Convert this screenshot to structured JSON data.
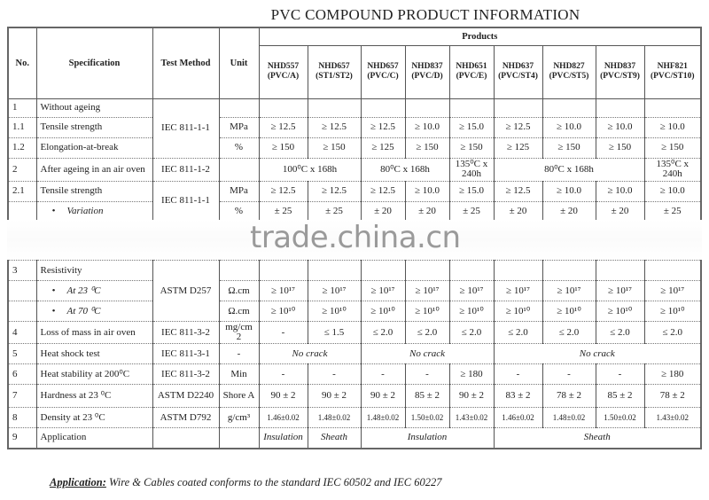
{
  "title": "PVC COMPOUND PRODUCT INFORMATION",
  "watermark": "trade.china.cn",
  "headers": {
    "no": "No.",
    "spec": "Specification",
    "method": "Test Method",
    "unit": "Unit",
    "products": "Products"
  },
  "products": [
    [
      "NHD557",
      "(PVC/A)"
    ],
    [
      "NHD657",
      "(ST1/ST2)"
    ],
    [
      "NHD657",
      "(PVC/C)"
    ],
    [
      "NHD837",
      "(PVC/D)"
    ],
    [
      "NHD651",
      "(PVC/E)"
    ],
    [
      "NHD637",
      "(PVC/ST4)"
    ],
    [
      "NHD827",
      "(PVC/ST5)"
    ],
    [
      "NHD837",
      "(PVC/ST9)"
    ],
    [
      "NHF821",
      "(PVC/ST10)"
    ]
  ],
  "rows_top": [
    {
      "no": "1",
      "spec": "Without ageing",
      "method": {
        "text": "IEC 811-1-1",
        "rowspan": 3
      },
      "unit": "",
      "values": [
        [
          "",
          1
        ],
        [
          "",
          1
        ],
        [
          "",
          1
        ],
        [
          "",
          1
        ],
        [
          "",
          1
        ],
        [
          "",
          1
        ],
        [
          "",
          1
        ],
        [
          "",
          1
        ],
        [
          "",
          1
        ]
      ]
    },
    {
      "no": "1.1",
      "spec": "Tensile strength",
      "unit": "MPa",
      "values": [
        [
          "≥ 12.5",
          1
        ],
        [
          "≥ 12.5",
          1
        ],
        [
          "≥ 12.5",
          1
        ],
        [
          "≥ 10.0",
          1
        ],
        [
          "≥ 15.0",
          1
        ],
        [
          "≥ 12.5",
          1
        ],
        [
          "≥ 10.0",
          1
        ],
        [
          "≥ 10.0",
          1
        ],
        [
          "≥ 10.0",
          1
        ]
      ]
    },
    {
      "no": "1.2",
      "spec": "Elongation-at-break",
      "unit": "%",
      "values": [
        [
          "≥ 150",
          1
        ],
        [
          "≥ 150",
          1
        ],
        [
          "≥ 125",
          1
        ],
        [
          "≥ 150",
          1
        ],
        [
          "≥ 150",
          1
        ],
        [
          "≥ 125",
          1
        ],
        [
          "≥ 150",
          1
        ],
        [
          "≥ 150",
          1
        ],
        [
          "≥ 150",
          1
        ]
      ]
    },
    {
      "no": "2",
      "spec": "After ageing in an air oven",
      "method": {
        "text": "IEC 811-1-2",
        "rowspan": 1
      },
      "unit": "",
      "values": [
        [
          "100⁰C x 168h",
          2
        ],
        [
          "80⁰C x 168h",
          2
        ],
        [
          "135⁰C x 240h",
          1
        ],
        [
          "80⁰C x 168h",
          3
        ],
        [
          "135⁰C x 240h",
          1
        ]
      ]
    },
    {
      "no": "2.1",
      "spec": "Tensile strength",
      "method": {
        "text": "IEC 811-1-1",
        "rowspan": 2
      },
      "unit": "MPa",
      "values": [
        [
          "≥ 12.5",
          1
        ],
        [
          "≥ 12.5",
          1
        ],
        [
          "≥ 12.5",
          1
        ],
        [
          "≥ 10.0",
          1
        ],
        [
          "≥ 15.0",
          1
        ],
        [
          "≥ 12.5",
          1
        ],
        [
          "≥ 10.0",
          1
        ],
        [
          "≥ 10.0",
          1
        ],
        [
          "≥ 10.0",
          1
        ]
      ]
    },
    {
      "no": "",
      "spec": "Variation",
      "bullet": true,
      "unit": "%",
      "values": [
        [
          "± 25",
          1
        ],
        [
          "± 25",
          1
        ],
        [
          "± 20",
          1
        ],
        [
          "± 20",
          1
        ],
        [
          "± 25",
          1
        ],
        [
          "± 20",
          1
        ],
        [
          "± 20",
          1
        ],
        [
          "± 20",
          1
        ],
        [
          "± 25",
          1
        ]
      ]
    }
  ],
  "rows_bottom": [
    {
      "no": "3",
      "spec": "Resistivity",
      "method": {
        "text": "ASTM D257",
        "rowspan": 3
      },
      "unit": "",
      "values": [
        [
          "",
          1
        ],
        [
          "",
          1
        ],
        [
          "",
          1
        ],
        [
          "",
          1
        ],
        [
          "",
          1
        ],
        [
          "",
          1
        ],
        [
          "",
          1
        ],
        [
          "",
          1
        ],
        [
          "",
          1
        ]
      ]
    },
    {
      "no": "",
      "spec": "At 23 ⁰C",
      "bullet": true,
      "unit": "Ω.cm",
      "values": [
        [
          "≥ 10¹⁷",
          1
        ],
        [
          "≥ 10¹⁷",
          1
        ],
        [
          "≥ 10¹⁷",
          1
        ],
        [
          "≥ 10¹⁷",
          1
        ],
        [
          "≥ 10¹⁷",
          1
        ],
        [
          "≥ 10¹⁷",
          1
        ],
        [
          "≥ 10¹⁷",
          1
        ],
        [
          "≥ 10¹⁷",
          1
        ],
        [
          "≥ 10¹⁷",
          1
        ]
      ]
    },
    {
      "no": "",
      "spec": "At 70 ⁰C",
      "bullet": true,
      "unit": "Ω.cm",
      "values": [
        [
          "≥ 10¹⁰",
          1
        ],
        [
          "≥ 10¹⁰",
          1
        ],
        [
          "≥ 10¹⁰",
          1
        ],
        [
          "≥ 10¹⁰",
          1
        ],
        [
          "≥ 10¹⁰",
          1
        ],
        [
          "≥ 10¹⁰",
          1
        ],
        [
          "≥ 10¹⁰",
          1
        ],
        [
          "≥ 10¹⁰",
          1
        ],
        [
          "≥ 10¹⁰",
          1
        ]
      ]
    },
    {
      "no": "4",
      "spec": "Loss of mass in air oven",
      "method": {
        "text": "IEC 811-3-2",
        "rowspan": 1
      },
      "unit": "mg/cm 2",
      "values": [
        [
          "-",
          1
        ],
        [
          "≤ 1.5",
          1
        ],
        [
          "≤ 2.0",
          1
        ],
        [
          "≤ 2.0",
          1
        ],
        [
          "≤ 2.0",
          1
        ],
        [
          "≤ 2.0",
          1
        ],
        [
          "≤ 2.0",
          1
        ],
        [
          "≤ 2.0",
          1
        ],
        [
          "≤ 2.0",
          1
        ]
      ]
    },
    {
      "no": "5",
      "spec": "Heat shock test",
      "method": {
        "text": "IEC 811-3-1",
        "rowspan": 1
      },
      "unit": "-",
      "italic": true,
      "values": [
        [
          "No crack",
          2
        ],
        [
          "No crack",
          3
        ],
        [
          "No crack",
          4
        ]
      ]
    },
    {
      "no": "6",
      "spec": "Heat stability at 200⁰C",
      "method": {
        "text": "IEC 811-3-2",
        "rowspan": 1
      },
      "unit": "Min",
      "values": [
        [
          "-",
          1
        ],
        [
          "-",
          1
        ],
        [
          "-",
          1
        ],
        [
          "-",
          1
        ],
        [
          "≥ 180",
          1
        ],
        [
          "-",
          1
        ],
        [
          "-",
          1
        ],
        [
          "-",
          1
        ],
        [
          "≥ 180",
          1
        ]
      ]
    },
    {
      "no": "7",
      "spec": "Hardness at 23 ⁰C",
      "method": {
        "text": "ASTM D2240",
        "rowspan": 1
      },
      "unit": "Shore A",
      "values": [
        [
          "90 ± 2",
          1
        ],
        [
          "90 ± 2",
          1
        ],
        [
          "90 ± 2",
          1
        ],
        [
          "85 ± 2",
          1
        ],
        [
          "90 ± 2",
          1
        ],
        [
          "83 ± 2",
          1
        ],
        [
          "78 ± 2",
          1
        ],
        [
          "85 ± 2",
          1
        ],
        [
          "78 ± 2",
          1
        ]
      ]
    },
    {
      "no": "8",
      "spec": "Density at 23 ⁰C",
      "method": {
        "text": "ASTM D792",
        "rowspan": 1
      },
      "unit": "g/cm³",
      "small": true,
      "values": [
        [
          "1.46±0.02",
          1
        ],
        [
          "1.48±0.02",
          1
        ],
        [
          "1.48±0.02",
          1
        ],
        [
          "1.50±0.02",
          1
        ],
        [
          "1.43±0.02",
          1
        ],
        [
          "1.46±0.02",
          1
        ],
        [
          "1.48±0.02",
          1
        ],
        [
          "1.50±0.02",
          1
        ],
        [
          "1.43±0.02",
          1
        ]
      ]
    },
    {
      "no": "9",
      "spec": "Application",
      "method": {
        "text": "",
        "rowspan": 1
      },
      "unit": "",
      "italic": true,
      "values": [
        [
          "Insulation",
          1
        ],
        [
          "Sheath",
          1
        ],
        [
          "Insulation",
          3
        ],
        [
          "Sheath",
          4
        ]
      ]
    }
  ],
  "application_note": {
    "label": "Application:",
    "text": " Wire & Cables coated conforms to the standard IEC 60502 and IEC 60227"
  }
}
